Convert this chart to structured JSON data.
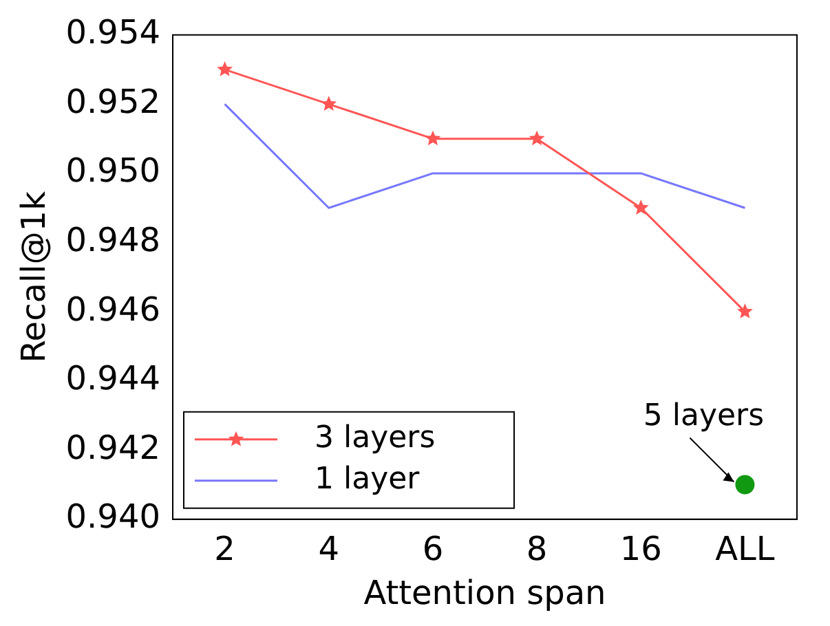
{
  "chart_data": {
    "type": "line",
    "xlabel": "Attention span",
    "ylabel": "Recall@1k",
    "categories": [
      "2",
      "4",
      "6",
      "8",
      "16",
      "ALL"
    ],
    "series": [
      {
        "name": "3 layers",
        "color": "#ff5555",
        "marker": "star",
        "values": [
          0.953,
          0.952,
          0.951,
          0.951,
          0.949,
          0.946
        ]
      },
      {
        "name": "1 layer",
        "color": "#7777ff",
        "marker": "none",
        "values": [
          0.952,
          0.949,
          0.95,
          0.95,
          0.95,
          0.949
        ]
      },
      {
        "type": "scatter",
        "color": "#119911",
        "marker": "circle",
        "values": [
          null,
          null,
          null,
          null,
          null,
          0.941
        ]
      }
    ],
    "annotations": [
      {
        "text": "5 layers",
        "x": "ALL",
        "y": 0.941
      }
    ],
    "ylim": [
      0.94,
      0.954
    ],
    "yticks": [
      {
        "value": 0.94,
        "label": "0.940"
      },
      0.942,
      0.944,
      0.946,
      0.948,
      {
        "value": 0.95,
        "label": "0.950"
      },
      0.952,
      0.954
    ],
    "grid": false,
    "legend": "bottom left"
  }
}
